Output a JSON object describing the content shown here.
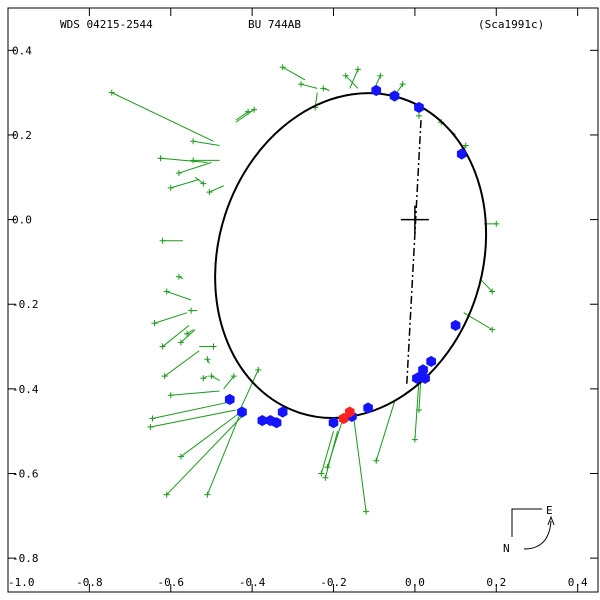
{
  "header": {
    "left": "WDS 04215-2544",
    "center": "BU  744AB",
    "right": "(Sca1991c)"
  },
  "compass": {
    "east_label": "E",
    "north_label": "N"
  },
  "colors": {
    "orbit": "#000000",
    "residual": "#1a9a1a",
    "measure_blue": "#1414ff",
    "measure_red": "#ff2020",
    "node_line": "#000000"
  },
  "chart_data": {
    "type": "scatter",
    "xlim": [
      -1.0,
      0.45
    ],
    "ylim": [
      -0.88,
      0.5
    ],
    "x_ticks": [
      {
        "v": -1.0,
        "label": "-1.0"
      },
      {
        "v": -0.8,
        "label": "-0.8"
      },
      {
        "v": -0.6,
        "label": "-0.6"
      },
      {
        "v": -0.4,
        "label": "-0.4"
      },
      {
        "v": -0.2,
        "label": "-0.2"
      },
      {
        "v": 0.0,
        "label": "0.0"
      },
      {
        "v": 0.2,
        "label": "0.2"
      },
      {
        "v": 0.4,
        "label": "0.4"
      }
    ],
    "y_ticks": [
      {
        "v": 0.4,
        "label": "0.4"
      },
      {
        "v": 0.2,
        "label": "0.2"
      },
      {
        "v": 0.0,
        "label": "0.0"
      },
      {
        "v": -0.2,
        "label": "-0.2"
      },
      {
        "v": -0.4,
        "label": "-0.4"
      },
      {
        "v": -0.6,
        "label": "-0.6"
      },
      {
        "v": -0.8,
        "label": "-0.8"
      }
    ],
    "primary_star": [
      0.0,
      0.0
    ],
    "orbit_ellipse": {
      "center": [
        -0.158,
        -0.085
      ],
      "semi_major": 0.392,
      "semi_minor": 0.323,
      "rotation_deg": 72
    },
    "node_line": [
      [
        0.015,
        0.235
      ],
      [
        -0.02,
        -0.39
      ]
    ],
    "blue_points": [
      [
        0.01,
        0.265
      ],
      [
        -0.05,
        0.292
      ],
      [
        -0.095,
        0.305
      ],
      [
        0.115,
        0.155
      ],
      [
        0.1,
        -0.25
      ],
      [
        0.04,
        -0.335
      ],
      [
        0.02,
        -0.355
      ],
      [
        0.015,
        -0.37
      ],
      [
        0.025,
        -0.375
      ],
      [
        0.005,
        -0.375
      ],
      [
        -0.455,
        -0.425
      ],
      [
        -0.425,
        -0.455
      ],
      [
        -0.375,
        -0.475
      ],
      [
        -0.355,
        -0.475
      ],
      [
        -0.34,
        -0.48
      ],
      [
        -0.325,
        -0.455
      ],
      [
        -0.2,
        -0.48
      ],
      [
        -0.155,
        -0.465
      ],
      [
        -0.115,
        -0.445
      ]
    ],
    "red_points": [
      [
        -0.175,
        -0.47
      ],
      [
        -0.16,
        -0.455
      ]
    ],
    "residuals": [
      [
        -0.745,
        0.3,
        -0.495,
        0.185
      ],
      [
        -0.545,
        0.185,
        -0.48,
        0.175
      ],
      [
        -0.625,
        0.145,
        -0.51,
        0.135
      ],
      [
        -0.58,
        0.11,
        -0.5,
        0.135
      ],
      [
        -0.6,
        0.075,
        -0.53,
        0.095
      ],
      [
        -0.52,
        0.085,
        -0.54,
        0.1
      ],
      [
        -0.545,
        0.14,
        -0.48,
        0.14
      ],
      [
        -0.505,
        0.065,
        -0.47,
        0.08
      ],
      [
        -0.41,
        0.255,
        -0.44,
        0.235
      ],
      [
        -0.395,
        0.26,
        -0.44,
        0.23
      ],
      [
        -0.325,
        0.36,
        -0.27,
        0.33
      ],
      [
        -0.28,
        0.32,
        -0.24,
        0.31
      ],
      [
        -0.225,
        0.31,
        -0.21,
        0.305
      ],
      [
        -0.14,
        0.355,
        -0.16,
        0.31
      ],
      [
        -0.085,
        0.34,
        -0.1,
        0.308
      ],
      [
        -0.17,
        0.34,
        -0.14,
        0.31
      ],
      [
        -0.245,
        0.265,
        -0.24,
        0.3
      ],
      [
        -0.03,
        0.32,
        -0.05,
        0.292
      ],
      [
        0.01,
        0.245,
        0.01,
        0.265
      ],
      [
        0.065,
        0.23,
        0.1,
        0.2
      ],
      [
        0.125,
        0.175,
        0.115,
        0.16
      ],
      [
        0.2,
        -0.01,
        0.17,
        -0.01
      ],
      [
        0.19,
        -0.17,
        0.16,
        -0.14
      ],
      [
        0.19,
        -0.26,
        0.12,
        -0.22
      ],
      [
        -0.62,
        -0.05,
        -0.57,
        -0.05
      ],
      [
        -0.58,
        -0.135,
        -0.57,
        -0.14
      ],
      [
        -0.61,
        -0.17,
        -0.55,
        -0.19
      ],
      [
        -0.64,
        -0.245,
        -0.56,
        -0.22
      ],
      [
        -0.62,
        -0.3,
        -0.555,
        -0.25
      ],
      [
        -0.56,
        -0.27,
        -0.545,
        -0.26
      ],
      [
        -0.55,
        -0.215,
        -0.535,
        -0.215
      ],
      [
        -0.575,
        -0.29,
        -0.54,
        -0.26
      ],
      [
        -0.615,
        -0.37,
        -0.53,
        -0.31
      ],
      [
        -0.495,
        -0.3,
        -0.53,
        -0.3
      ],
      [
        -0.51,
        -0.33,
        -0.505,
        -0.34
      ],
      [
        -0.5,
        -0.37,
        -0.48,
        -0.38
      ],
      [
        -0.52,
        -0.375,
        -0.51,
        -0.37
      ],
      [
        -0.445,
        -0.37,
        -0.47,
        -0.4
      ],
      [
        -0.385,
        -0.355,
        -0.43,
        -0.45
      ],
      [
        -0.6,
        -0.415,
        -0.48,
        -0.405
      ],
      [
        -0.645,
        -0.47,
        -0.45,
        -0.43
      ],
      [
        -0.65,
        -0.49,
        -0.44,
        -0.45
      ],
      [
        -0.575,
        -0.56,
        -0.435,
        -0.46
      ],
      [
        -0.51,
        -0.65,
        -0.43,
        -0.46
      ],
      [
        -0.61,
        -0.65,
        -0.42,
        -0.46
      ],
      [
        -0.23,
        -0.6,
        -0.2,
        -0.5
      ],
      [
        -0.22,
        -0.61,
        -0.19,
        -0.5
      ],
      [
        -0.215,
        -0.585,
        -0.18,
        -0.48
      ],
      [
        -0.095,
        -0.57,
        -0.05,
        -0.43
      ],
      [
        -0.12,
        -0.69,
        -0.15,
        -0.47
      ],
      [
        0.0,
        -0.52,
        0.01,
        -0.38
      ],
      [
        0.01,
        -0.45,
        0.015,
        -0.37
      ]
    ]
  }
}
